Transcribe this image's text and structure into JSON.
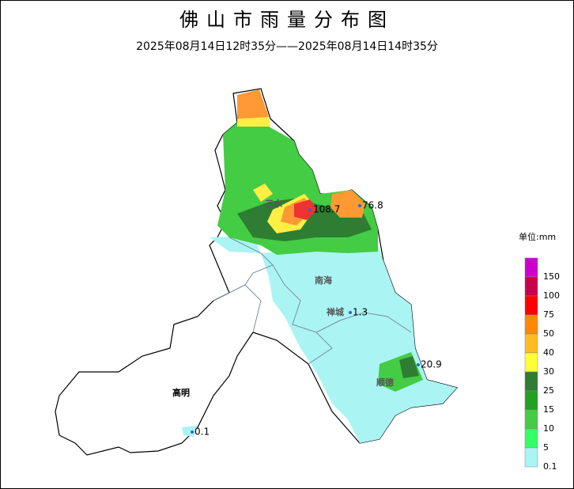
{
  "header": {
    "title": "佛山市雨量分布图",
    "subtitle": "2025年08月14日12时35分——2025年08月14日14时35分"
  },
  "legend": {
    "unit": "单位:mm",
    "levels": [
      {
        "value": 150,
        "color": "#cc00cc"
      },
      {
        "value": 100,
        "color": "#c8004b"
      },
      {
        "value": 75,
        "color": "#ff0000"
      },
      {
        "value": 50,
        "color": "#ff8800"
      },
      {
        "value": 40,
        "color": "#ffbb22"
      },
      {
        "value": 30,
        "color": "#ffff33"
      },
      {
        "value": 25,
        "color": "#2e7d32"
      },
      {
        "value": 15,
        "color": "#22a022"
      },
      {
        "value": 10,
        "color": "#44cc44"
      },
      {
        "value": 5,
        "color": "#33ff66"
      },
      {
        "value": 0.1,
        "color": "#aaf4f4"
      }
    ]
  },
  "districts": [
    {
      "label": "三水"
    },
    {
      "label": "南海"
    },
    {
      "label": "禅城"
    },
    {
      "label": "顺德"
    },
    {
      "label": "高明"
    }
  ],
  "stations": [
    {
      "value": 108.7
    },
    {
      "value": 76.8
    },
    {
      "value": 1.3
    },
    {
      "value": 20.9
    },
    {
      "value": 0.1
    }
  ]
}
